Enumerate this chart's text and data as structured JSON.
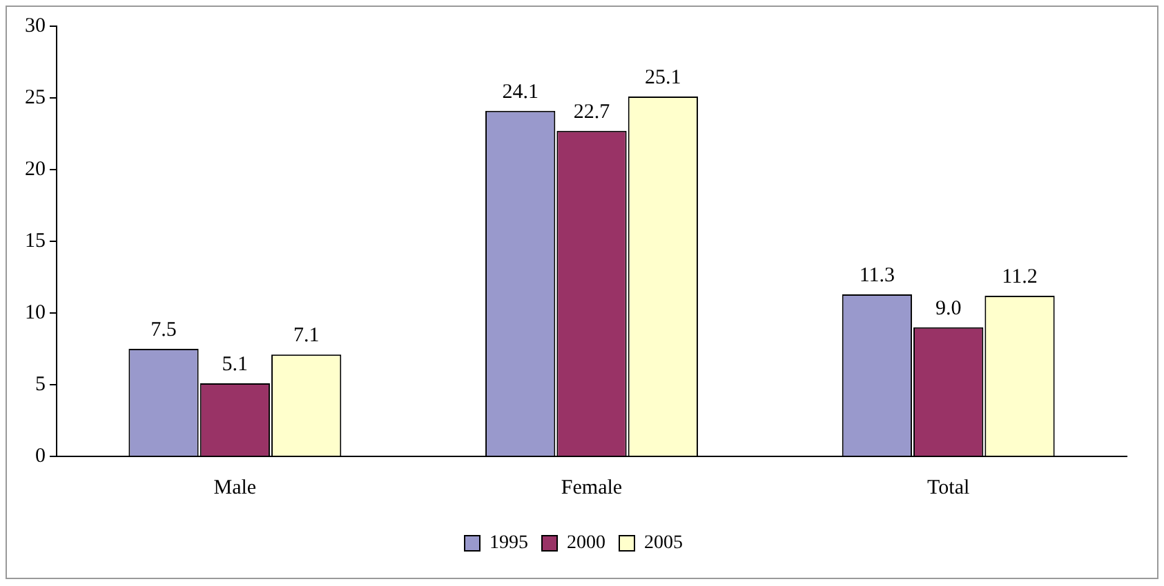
{
  "chart_data": {
    "type": "bar",
    "categories": [
      "Male",
      "Female",
      "Total"
    ],
    "series": [
      {
        "name": "1995",
        "color": "#9999cc",
        "values": [
          7.5,
          24.1,
          11.3
        ],
        "value_labels": [
          "7.5",
          "24.1",
          "11.3"
        ]
      },
      {
        "name": "2000",
        "color": "#993366",
        "values": [
          5.1,
          22.7,
          9.0
        ],
        "value_labels": [
          "5.1",
          "22.7",
          "9.0"
        ]
      },
      {
        "name": "2005",
        "color": "#ffffcc",
        "values": [
          7.1,
          25.1,
          11.2
        ],
        "value_labels": [
          "7.1",
          "25.1",
          "11.2"
        ]
      }
    ],
    "ylim": [
      0,
      30
    ],
    "yticks": [
      0,
      5,
      10,
      15,
      20,
      25,
      30
    ],
    "grid": false,
    "legend": "bottom"
  }
}
